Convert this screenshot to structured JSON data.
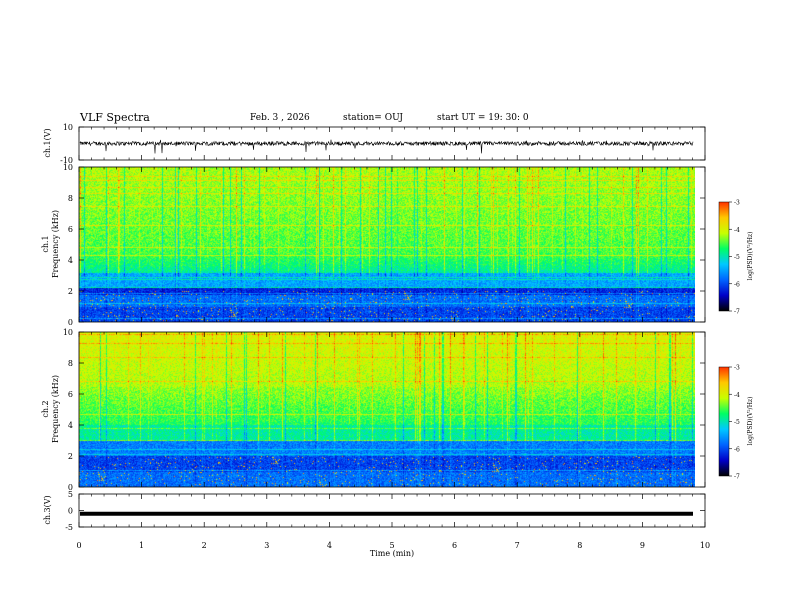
{
  "header": {
    "title": "VLF Spectra",
    "date": "Feb. 3  , 2026",
    "station": "station= OUJ",
    "start": "start  UT  =   19: 30: 0"
  },
  "chart_data": [
    {
      "type": "line",
      "panel": "ch1-waveform",
      "ylabel": "ch.1(V)",
      "yticklabels": [
        "10",
        "-10"
      ],
      "ylim": [
        -10,
        10
      ],
      "xlim": [
        0,
        10
      ],
      "baseline": 0,
      "noise_amplitude": 2
    },
    {
      "type": "heatmap",
      "panel": "ch1-spectrogram",
      "ylabel": "ch.1\nFrequency  (kHz)",
      "ylabel_lines": [
        "ch.1",
        "Frequency  (kHz)"
      ],
      "yticklabels": [
        "0",
        "2",
        "4",
        "6",
        "8",
        "10"
      ],
      "ylim": [
        0,
        10
      ],
      "xlim": [
        0,
        9.83
      ],
      "colorbar": {
        "label": "log(PSD)(V²/Hz)",
        "ticklabels": [
          "-3",
          "-4",
          "-5",
          "-6",
          "-7"
        ],
        "range": [
          -7,
          -3
        ]
      }
    },
    {
      "type": "heatmap",
      "panel": "ch2-spectrogram",
      "ylabel": "ch.2\nFrequency  (kHz)",
      "ylabel_lines": [
        "ch.2",
        "Frequency  (kHz)"
      ],
      "yticklabels": [
        "0",
        "2",
        "4",
        "6",
        "8",
        "10"
      ],
      "ylim": [
        0,
        10
      ],
      "xlim": [
        0,
        9.83
      ],
      "colorbar": {
        "label": "log(PSD)(V²/Hz)",
        "ticklabels": [
          "-3",
          "-4",
          "-5",
          "-6",
          "-7"
        ],
        "range": [
          -7,
          -3
        ]
      }
    },
    {
      "type": "line",
      "panel": "ch3-waveform",
      "ylabel": "ch.3(V)",
      "yticklabels": [
        "5",
        "0",
        "-5"
      ],
      "ylim": [
        -5,
        5
      ],
      "xlim": [
        0,
        10
      ],
      "baseline": -1,
      "noise_amplitude": 0
    }
  ],
  "xaxis": {
    "xlabel": "Time  (min)",
    "ticklabels": [
      "0",
      "1",
      "2",
      "3",
      "4",
      "5",
      "6",
      "7",
      "8",
      "9",
      "10"
    ],
    "xlim": [
      0,
      10
    ]
  },
  "colors": {
    "colormap": [
      "#000000",
      "#0000c8",
      "#0064ff",
      "#00c8ff",
      "#00ff64",
      "#c8ff00",
      "#ffc800",
      "#ff3200",
      "#ffffff"
    ]
  }
}
